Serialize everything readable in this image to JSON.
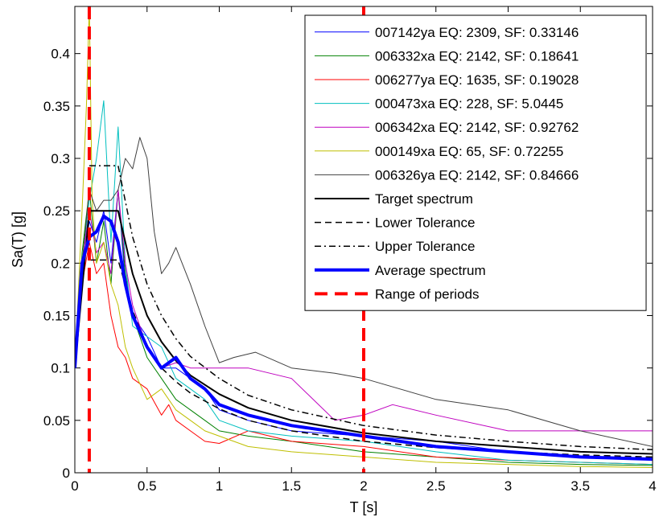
{
  "chart_data": {
    "type": "line",
    "title": "",
    "xlabel": "T [s]",
    "ylabel": "Sa(T) [g]",
    "xlim": [
      0,
      4
    ],
    "ylim": [
      0,
      0.445
    ],
    "xticks": [
      0,
      0.5,
      1,
      1.5,
      2,
      2.5,
      3,
      3.5,
      4
    ],
    "xtick_labels": [
      "0",
      "0.5",
      "1",
      "1.5",
      "2",
      "2.5",
      "3",
      "3.5",
      "4"
    ],
    "yticks": [
      0,
      0.05,
      0.1,
      0.15,
      0.2,
      0.25,
      0.3,
      0.35,
      0.4
    ],
    "ytick_labels": [
      "0",
      "0.05",
      "0.1",
      "0.15",
      "0.2",
      "0.25",
      "0.3",
      "0.35",
      "0.4"
    ],
    "grid": false,
    "legend_position": "top-right",
    "range_of_periods": [
      0.1,
      2.0
    ],
    "series": [
      {
        "name": "007142ya EQ: 2309, SF: 0.33146",
        "color": "#0000ff",
        "style": "solid",
        "width": 1,
        "x": [
          0,
          0.05,
          0.1,
          0.15,
          0.2,
          0.25,
          0.3,
          0.35,
          0.4,
          0.5,
          0.6,
          0.7,
          0.8,
          0.9,
          1,
          1.2,
          1.5,
          2,
          2.5,
          3,
          3.5,
          4
        ],
        "y": [
          0.1,
          0.19,
          0.24,
          0.22,
          0.25,
          0.2,
          0.27,
          0.18,
          0.15,
          0.13,
          0.1,
          0.1,
          0.09,
          0.08,
          0.06,
          0.05,
          0.04,
          0.035,
          0.03,
          0.02,
          0.015,
          0.012
        ]
      },
      {
        "name": "006332xa EQ: 2142, SF: 0.18641",
        "color": "#008000",
        "style": "solid",
        "width": 1,
        "x": [
          0,
          0.05,
          0.1,
          0.15,
          0.2,
          0.25,
          0.3,
          0.35,
          0.4,
          0.5,
          0.6,
          0.7,
          0.8,
          0.9,
          1,
          1.2,
          1.5,
          2,
          2.5,
          3,
          3.5,
          4
        ],
        "y": [
          0.1,
          0.21,
          0.27,
          0.2,
          0.24,
          0.18,
          0.27,
          0.19,
          0.15,
          0.11,
          0.09,
          0.07,
          0.06,
          0.05,
          0.04,
          0.035,
          0.03,
          0.02,
          0.015,
          0.01,
          0.008,
          0.007
        ]
      },
      {
        "name": "006277ya EQ: 1635, SF: 0.19028",
        "color": "#ff0000",
        "style": "solid",
        "width": 1,
        "x": [
          0,
          0.05,
          0.1,
          0.15,
          0.2,
          0.25,
          0.3,
          0.35,
          0.4,
          0.5,
          0.6,
          0.65,
          0.7,
          0.8,
          0.9,
          1,
          1.2,
          1.5,
          2,
          2.5,
          3,
          3.5,
          4
        ],
        "y": [
          0.1,
          0.18,
          0.22,
          0.19,
          0.2,
          0.15,
          0.12,
          0.11,
          0.09,
          0.08,
          0.055,
          0.065,
          0.05,
          0.04,
          0.03,
          0.028,
          0.04,
          0.03,
          0.025,
          0.015,
          0.012,
          0.01,
          0.008
        ]
      },
      {
        "name": "000473xa EQ: 228, SF: 5.0445",
        "color": "#00bfbf",
        "style": "solid",
        "width": 1,
        "x": [
          0,
          0.05,
          0.1,
          0.15,
          0.2,
          0.25,
          0.3,
          0.35,
          0.4,
          0.5,
          0.6,
          0.7,
          0.8,
          0.9,
          1,
          1.2,
          1.5,
          2,
          2.5,
          3,
          3.5,
          4
        ],
        "y": [
          0.1,
          0.2,
          0.26,
          0.3,
          0.355,
          0.22,
          0.33,
          0.2,
          0.14,
          0.13,
          0.12,
          0.09,
          0.08,
          0.07,
          0.05,
          0.04,
          0.035,
          0.03,
          0.02,
          0.012,
          0.01,
          0.008
        ]
      },
      {
        "name": "006342xa EQ: 2142, SF: 0.92762",
        "color": "#bf00bf",
        "style": "solid",
        "width": 1,
        "x": [
          0,
          0.05,
          0.1,
          0.15,
          0.2,
          0.25,
          0.3,
          0.35,
          0.4,
          0.5,
          0.6,
          0.7,
          0.8,
          0.9,
          1,
          1.2,
          1.5,
          1.8,
          2,
          2.2,
          2.5,
          3,
          3.5,
          4
        ],
        "y": [
          0.1,
          0.2,
          0.25,
          0.21,
          0.22,
          0.19,
          0.27,
          0.2,
          0.16,
          0.12,
          0.1,
          0.105,
          0.1,
          0.1,
          0.1,
          0.1,
          0.09,
          0.05,
          0.055,
          0.065,
          0.055,
          0.04,
          0.04,
          0.04
        ]
      },
      {
        "name": "000149xa EQ: 65, SF: 0.72255",
        "color": "#bfbf00",
        "style": "solid",
        "width": 1,
        "x": [
          0,
          0.05,
          0.08,
          0.1,
          0.12,
          0.15,
          0.2,
          0.25,
          0.3,
          0.35,
          0.4,
          0.5,
          0.6,
          0.7,
          0.8,
          0.9,
          1,
          1.2,
          1.5,
          2,
          2.5,
          3,
          3.5,
          4
        ],
        "y": [
          0.1,
          0.25,
          0.35,
          0.445,
          0.26,
          0.2,
          0.22,
          0.18,
          0.16,
          0.12,
          0.1,
          0.07,
          0.08,
          0.06,
          0.05,
          0.04,
          0.035,
          0.025,
          0.02,
          0.015,
          0.01,
          0.008,
          0.006,
          0.005
        ]
      },
      {
        "name": "006326ya EQ: 2142, SF: 0.84666",
        "color": "#404040",
        "style": "solid",
        "width": 1,
        "x": [
          0,
          0.05,
          0.1,
          0.15,
          0.2,
          0.25,
          0.3,
          0.35,
          0.4,
          0.45,
          0.5,
          0.55,
          0.6,
          0.65,
          0.7,
          0.8,
          0.9,
          1,
          1.1,
          1.25,
          1.5,
          1.8,
          2,
          2.5,
          3,
          3.5,
          4
        ],
        "y": [
          0.1,
          0.2,
          0.27,
          0.25,
          0.26,
          0.26,
          0.27,
          0.3,
          0.29,
          0.32,
          0.3,
          0.23,
          0.19,
          0.2,
          0.215,
          0.18,
          0.14,
          0.105,
          0.11,
          0.115,
          0.1,
          0.095,
          0.09,
          0.07,
          0.06,
          0.04,
          0.025
        ]
      },
      {
        "name": "Target spectrum",
        "color": "#000000",
        "style": "solid",
        "width": 2,
        "x": [
          0,
          0.1,
          0.3,
          0.4,
          0.5,
          0.6,
          0.7,
          0.8,
          1,
          1.2,
          1.5,
          2,
          2.5,
          3,
          3.5,
          4
        ],
        "y": [
          0.1,
          0.25,
          0.25,
          0.19,
          0.15,
          0.125,
          0.107,
          0.093,
          0.075,
          0.062,
          0.05,
          0.038,
          0.03,
          0.025,
          0.02,
          0.018
        ]
      },
      {
        "name": "Lower Tolerance",
        "color": "#000000",
        "style": "dashed",
        "width": 1.5,
        "x": [
          0.1,
          0.3,
          0.4,
          0.5,
          0.6,
          0.7,
          0.8,
          1,
          1.2,
          1.5,
          2,
          2.5,
          3,
          3.5,
          4
        ],
        "y": [
          0.203,
          0.203,
          0.155,
          0.12,
          0.1,
          0.087,
          0.076,
          0.061,
          0.05,
          0.04,
          0.03,
          0.024,
          0.02,
          0.017,
          0.015
        ]
      },
      {
        "name": "Upper Tolerance",
        "color": "#000000",
        "style": "dashdot",
        "width": 1.5,
        "x": [
          0.1,
          0.3,
          0.4,
          0.5,
          0.6,
          0.7,
          0.8,
          1,
          1.2,
          1.5,
          2,
          2.5,
          3,
          3.5,
          4
        ],
        "y": [
          0.293,
          0.293,
          0.225,
          0.18,
          0.15,
          0.128,
          0.111,
          0.09,
          0.074,
          0.06,
          0.045,
          0.036,
          0.03,
          0.025,
          0.022
        ]
      },
      {
        "name": "Average spectrum",
        "color": "#0000ff",
        "style": "solid",
        "width": 4,
        "x": [
          0,
          0.05,
          0.1,
          0.15,
          0.2,
          0.25,
          0.3,
          0.35,
          0.4,
          0.5,
          0.6,
          0.7,
          0.8,
          0.9,
          1,
          1.2,
          1.5,
          2,
          2.5,
          3,
          3.5,
          4
        ],
        "y": [
          0.1,
          0.2,
          0.225,
          0.23,
          0.245,
          0.24,
          0.22,
          0.18,
          0.15,
          0.12,
          0.1,
          0.11,
          0.09,
          0.08,
          0.065,
          0.055,
          0.045,
          0.035,
          0.025,
          0.02,
          0.015,
          0.013
        ]
      },
      {
        "name": "Range of periods",
        "color": "#ff0000",
        "style": "thickdash",
        "width": 4,
        "x": [],
        "y": []
      }
    ]
  }
}
